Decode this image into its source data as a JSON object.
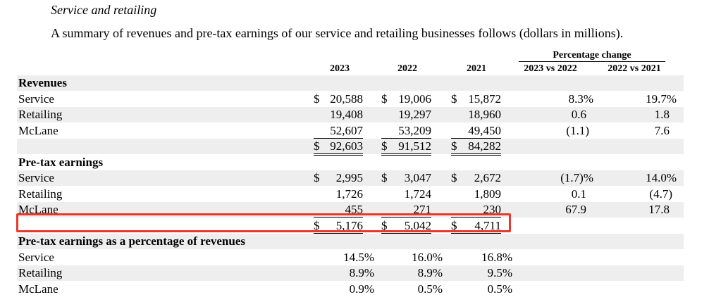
{
  "heading": "Service and retailing",
  "intro": "A summary of revenues and pre-tax earnings of our service and retailing businesses follows (dollars in millions).",
  "columns": {
    "years": [
      "2023",
      "2022",
      "2021"
    ],
    "pct_group": "Percentage change",
    "pct": [
      "2023 vs 2022",
      "2022 vs 2021"
    ]
  },
  "revenues": {
    "title": "Revenues",
    "rows": [
      {
        "label": "Service",
        "v": [
          "20,588",
          "19,006",
          "15,872"
        ],
        "p": [
          "8.3%",
          "19.7%"
        ],
        "dollar": true
      },
      {
        "label": "Retailing",
        "v": [
          "19,408",
          "19,297",
          "18,960"
        ],
        "p": [
          "0.6",
          "1.8"
        ]
      },
      {
        "label": "McLane",
        "v": [
          "52,607",
          "53,209",
          "49,450"
        ],
        "p": [
          "(1.1)",
          "7.6"
        ]
      }
    ],
    "total": [
      "92,603",
      "91,512",
      "84,282"
    ]
  },
  "earnings": {
    "title": "Pre-tax earnings",
    "rows": [
      {
        "label": "Service",
        "v": [
          "2,995",
          "3,047",
          "2,672"
        ],
        "p": [
          "(1.7)%",
          "14.0%"
        ],
        "dollar": true
      },
      {
        "label": "Retailing",
        "v": [
          "1,726",
          "1,724",
          "1,809"
        ],
        "p": [
          "0.1",
          "(4.7)"
        ]
      },
      {
        "label": "McLane",
        "v": [
          "455",
          "271",
          "230"
        ],
        "p": [
          "67.9",
          "17.8"
        ]
      }
    ],
    "total": [
      "5,176",
      "5,042",
      "4,711"
    ]
  },
  "margins": {
    "title": "Pre-tax earnings as a percentage of revenues",
    "rows": [
      {
        "label": "Service",
        "v": [
          "14.5%",
          "16.0%",
          "16.8%"
        ]
      },
      {
        "label": "Retailing",
        "v": [
          "8.9%",
          "8.9%",
          "9.5%"
        ]
      },
      {
        "label": "McLane",
        "v": [
          "0.9%",
          "0.5%",
          "0.5%"
        ]
      }
    ]
  },
  "currency_symbol": "$",
  "highlight_color": "#e8382c"
}
